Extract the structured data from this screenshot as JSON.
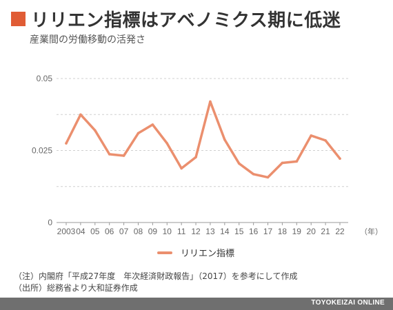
{
  "header": {
    "title": "リリエン指標はアベノミクス期に低迷",
    "subtitle": "産業間の労働移動の活発さ"
  },
  "chart_data": {
    "type": "line",
    "x": [
      "2003",
      "04",
      "05",
      "06",
      "07",
      "08",
      "09",
      "10",
      "11",
      "12",
      "13",
      "14",
      "15",
      "16",
      "17",
      "18",
      "19",
      "20",
      "21",
      "22"
    ],
    "series": [
      {
        "name": "リリエン指標",
        "values": [
          0.0275,
          0.0375,
          0.032,
          0.0237,
          0.0232,
          0.031,
          0.034,
          0.0275,
          0.0188,
          0.0227,
          0.042,
          0.0288,
          0.0205,
          0.0168,
          0.0157,
          0.0207,
          0.0212,
          0.0302,
          0.0285,
          0.0222
        ]
      }
    ],
    "ylim": [
      0,
      0.05
    ],
    "yticks": [
      0,
      0.025,
      0.05
    ],
    "ytick_labels": [
      "0",
      "0.025",
      "0.05"
    ],
    "x_unit_label": "（年）",
    "legend_position": "bottom-center",
    "grid": "horizontal dashed",
    "line_color": "#eb8f6e"
  },
  "notes": [
    "（注）内閣府「平成27年度　年次経済財政報告」（2017）を参考にして作成",
    "（出所）総務省より大和証券作成"
  ],
  "footer": {
    "brand": "TOYOKEIZAI ONLINE"
  },
  "colors": {
    "accent": "#e05c35",
    "footer_bg": "#6f6f6f"
  }
}
